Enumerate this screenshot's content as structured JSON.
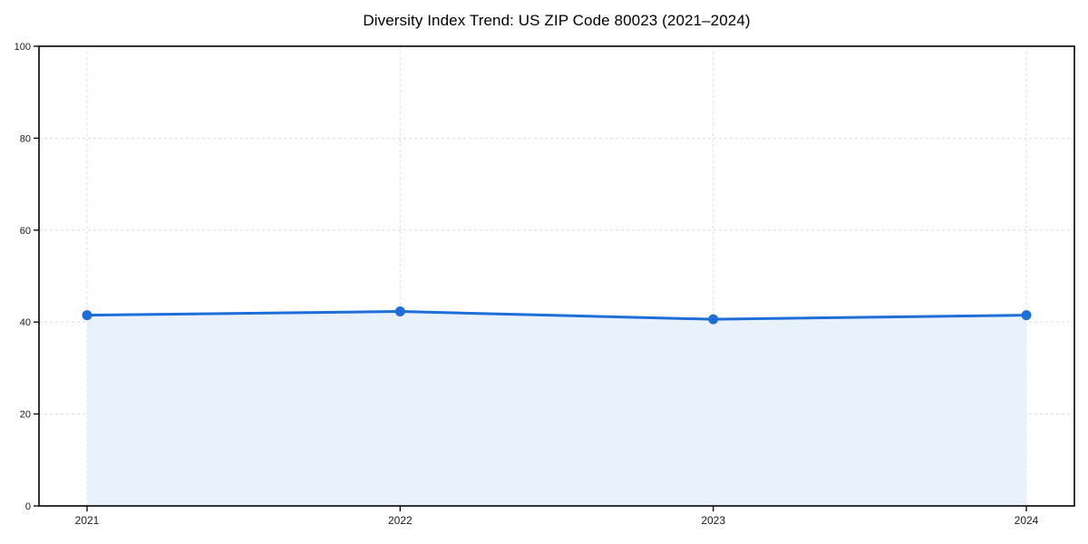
{
  "chart_data": {
    "type": "line",
    "title": "Diversity Index Trend: US ZIP Code 80023 (2021–2024)",
    "x": [
      "2021",
      "2022",
      "2023",
      "2024"
    ],
    "series": [
      {
        "name": "Diversity Index",
        "values": [
          41.5,
          42.3,
          40.6,
          41.5
        ]
      }
    ],
    "xlabel": "",
    "ylabel": "",
    "ylim": [
      0,
      100
    ],
    "yticks": [
      0,
      20,
      40,
      60,
      80,
      100
    ],
    "grid": true,
    "grid_style": "dashed",
    "legend_position": "none",
    "marker": "circle",
    "area_fill": true,
    "colors": {
      "line": "#1e6ed9",
      "marker": "#1e6ed9",
      "area_fill": "#e9f1fc",
      "grid": "#dcdcdc",
      "spine": "#111111",
      "tick_mark": "#111111",
      "tick_label": "#1a1a1a",
      "title": "#000000",
      "background": "#ffffff"
    }
  }
}
